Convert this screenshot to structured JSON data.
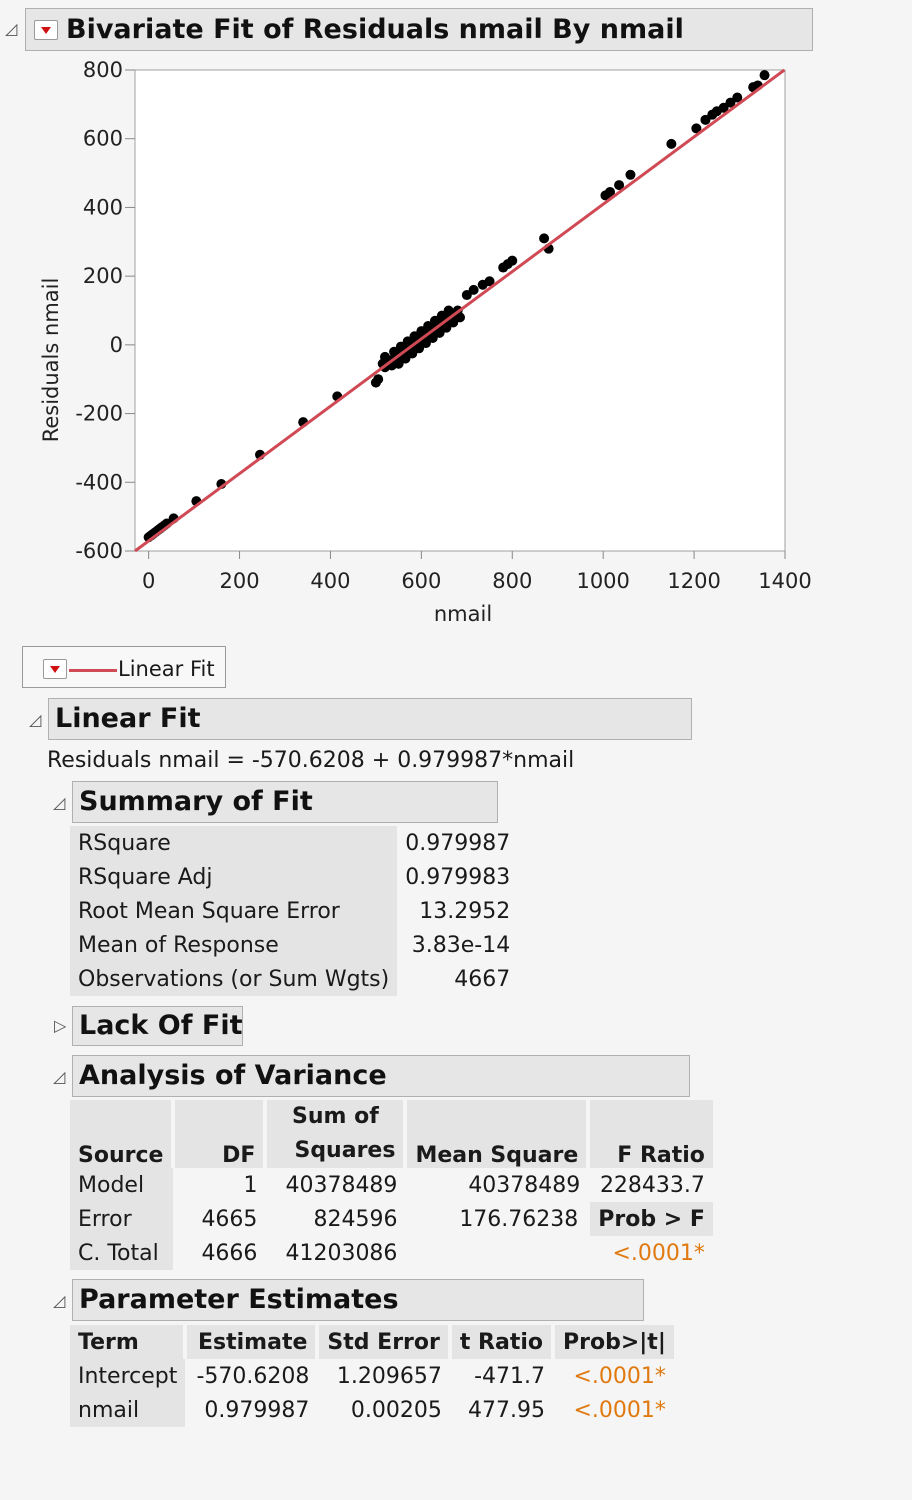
{
  "report": {
    "title": "Bivariate Fit of Residuals nmail By nmail",
    "legend_label": "Linear Fit",
    "linear_fit_title": "Linear Fit",
    "equation": "Residuals nmail = -570.6208 + 0.979987*nmail"
  },
  "chart_data": {
    "type": "scatter",
    "xlabel": "nmail",
    "ylabel": "Residuals nmail",
    "xlim": [
      -30,
      1400
    ],
    "ylim": [
      -600,
      800
    ],
    "x_ticks": [
      "0",
      "200",
      "400",
      "600",
      "800",
      "1000",
      "1200",
      "1400"
    ],
    "y_ticks": [
      "800",
      "600",
      "400",
      "200",
      "0",
      "-200",
      "-400",
      "-600"
    ],
    "fit_line": {
      "intercept": -570.6208,
      "slope": 0.979987,
      "color": "#d04a55"
    },
    "points": [
      [
        0,
        -560
      ],
      [
        5,
        -555
      ],
      [
        10,
        -550
      ],
      [
        15,
        -545
      ],
      [
        20,
        -540
      ],
      [
        25,
        -535
      ],
      [
        30,
        -530
      ],
      [
        35,
        -525
      ],
      [
        40,
        -520
      ],
      [
        55,
        -505
      ],
      [
        105,
        -455
      ],
      [
        160,
        -405
      ],
      [
        245,
        -320
      ],
      [
        340,
        -225
      ],
      [
        415,
        -150
      ],
      [
        500,
        -110
      ],
      [
        505,
        -100
      ],
      [
        515,
        -55
      ],
      [
        520,
        -65
      ],
      [
        530,
        -45
      ],
      [
        540,
        -40
      ],
      [
        550,
        -30
      ],
      [
        560,
        -20
      ],
      [
        570,
        -10
      ],
      [
        580,
        0
      ],
      [
        590,
        10
      ],
      [
        600,
        20
      ],
      [
        610,
        30
      ],
      [
        620,
        40
      ],
      [
        630,
        50
      ],
      [
        640,
        60
      ],
      [
        650,
        70
      ],
      [
        660,
        80
      ],
      [
        670,
        90
      ],
      [
        680,
        100
      ],
      [
        520,
        -35
      ],
      [
        535,
        -60
      ],
      [
        550,
        -55
      ],
      [
        565,
        -40
      ],
      [
        580,
        -25
      ],
      [
        595,
        -10
      ],
      [
        610,
        5
      ],
      [
        625,
        20
      ],
      [
        640,
        35
      ],
      [
        655,
        50
      ],
      [
        670,
        65
      ],
      [
        685,
        80
      ],
      [
        540,
        -20
      ],
      [
        555,
        -5
      ],
      [
        570,
        10
      ],
      [
        585,
        25
      ],
      [
        600,
        40
      ],
      [
        615,
        55
      ],
      [
        630,
        70
      ],
      [
        645,
        85
      ],
      [
        660,
        100
      ],
      [
        700,
        145
      ],
      [
        715,
        160
      ],
      [
        735,
        175
      ],
      [
        750,
        185
      ],
      [
        780,
        225
      ],
      [
        790,
        235
      ],
      [
        800,
        245
      ],
      [
        870,
        310
      ],
      [
        880,
        280
      ],
      [
        1005,
        435
      ],
      [
        1015,
        445
      ],
      [
        1035,
        465
      ],
      [
        1060,
        495
      ],
      [
        1150,
        585
      ],
      [
        1205,
        630
      ],
      [
        1225,
        655
      ],
      [
        1240,
        670
      ],
      [
        1250,
        680
      ],
      [
        1265,
        690
      ],
      [
        1280,
        705
      ],
      [
        1295,
        720
      ],
      [
        1330,
        750
      ],
      [
        1340,
        755
      ],
      [
        1355,
        785
      ]
    ]
  },
  "summary_of_fit": {
    "title": "Summary of Fit",
    "rows": [
      {
        "label": "RSquare",
        "value": "0.979987"
      },
      {
        "label": "RSquare Adj",
        "value": "0.979983"
      },
      {
        "label": "Root Mean Square Error",
        "value": "13.2952"
      },
      {
        "label": "Mean of Response",
        "value": "3.83e-14"
      },
      {
        "label": "Observations (or Sum Wgts)",
        "value": "4667"
      }
    ]
  },
  "lack_of_fit": {
    "title": "Lack Of Fit"
  },
  "anova": {
    "title": "Analysis of Variance",
    "headers": [
      "Source",
      "DF",
      "Sum of",
      "Squares",
      "Mean Square",
      "F Ratio"
    ],
    "rows": [
      {
        "source": "Model",
        "df": "1",
        "ss": "40378489",
        "ms": "40378489",
        "f": "228433.7"
      },
      {
        "source": "Error",
        "df": "4665",
        "ss": "824596",
        "ms": "176.76238",
        "f": "Prob > F"
      },
      {
        "source": "C. Total",
        "df": "4666",
        "ss": "41203086",
        "ms": "",
        "f": "<.0001*"
      }
    ]
  },
  "parameter_estimates": {
    "title": "Parameter Estimates",
    "headers": [
      "Term",
      "Estimate",
      "Std Error",
      "t Ratio",
      "Prob>|t|"
    ],
    "rows": [
      {
        "term": "Intercept",
        "estimate": "-570.6208",
        "se": "1.209657",
        "t": "-471.7",
        "p": "<.0001*"
      },
      {
        "term": "nmail",
        "estimate": "0.979987",
        "se": "0.00205",
        "t": "477.95",
        "p": "<.0001*"
      }
    ]
  }
}
